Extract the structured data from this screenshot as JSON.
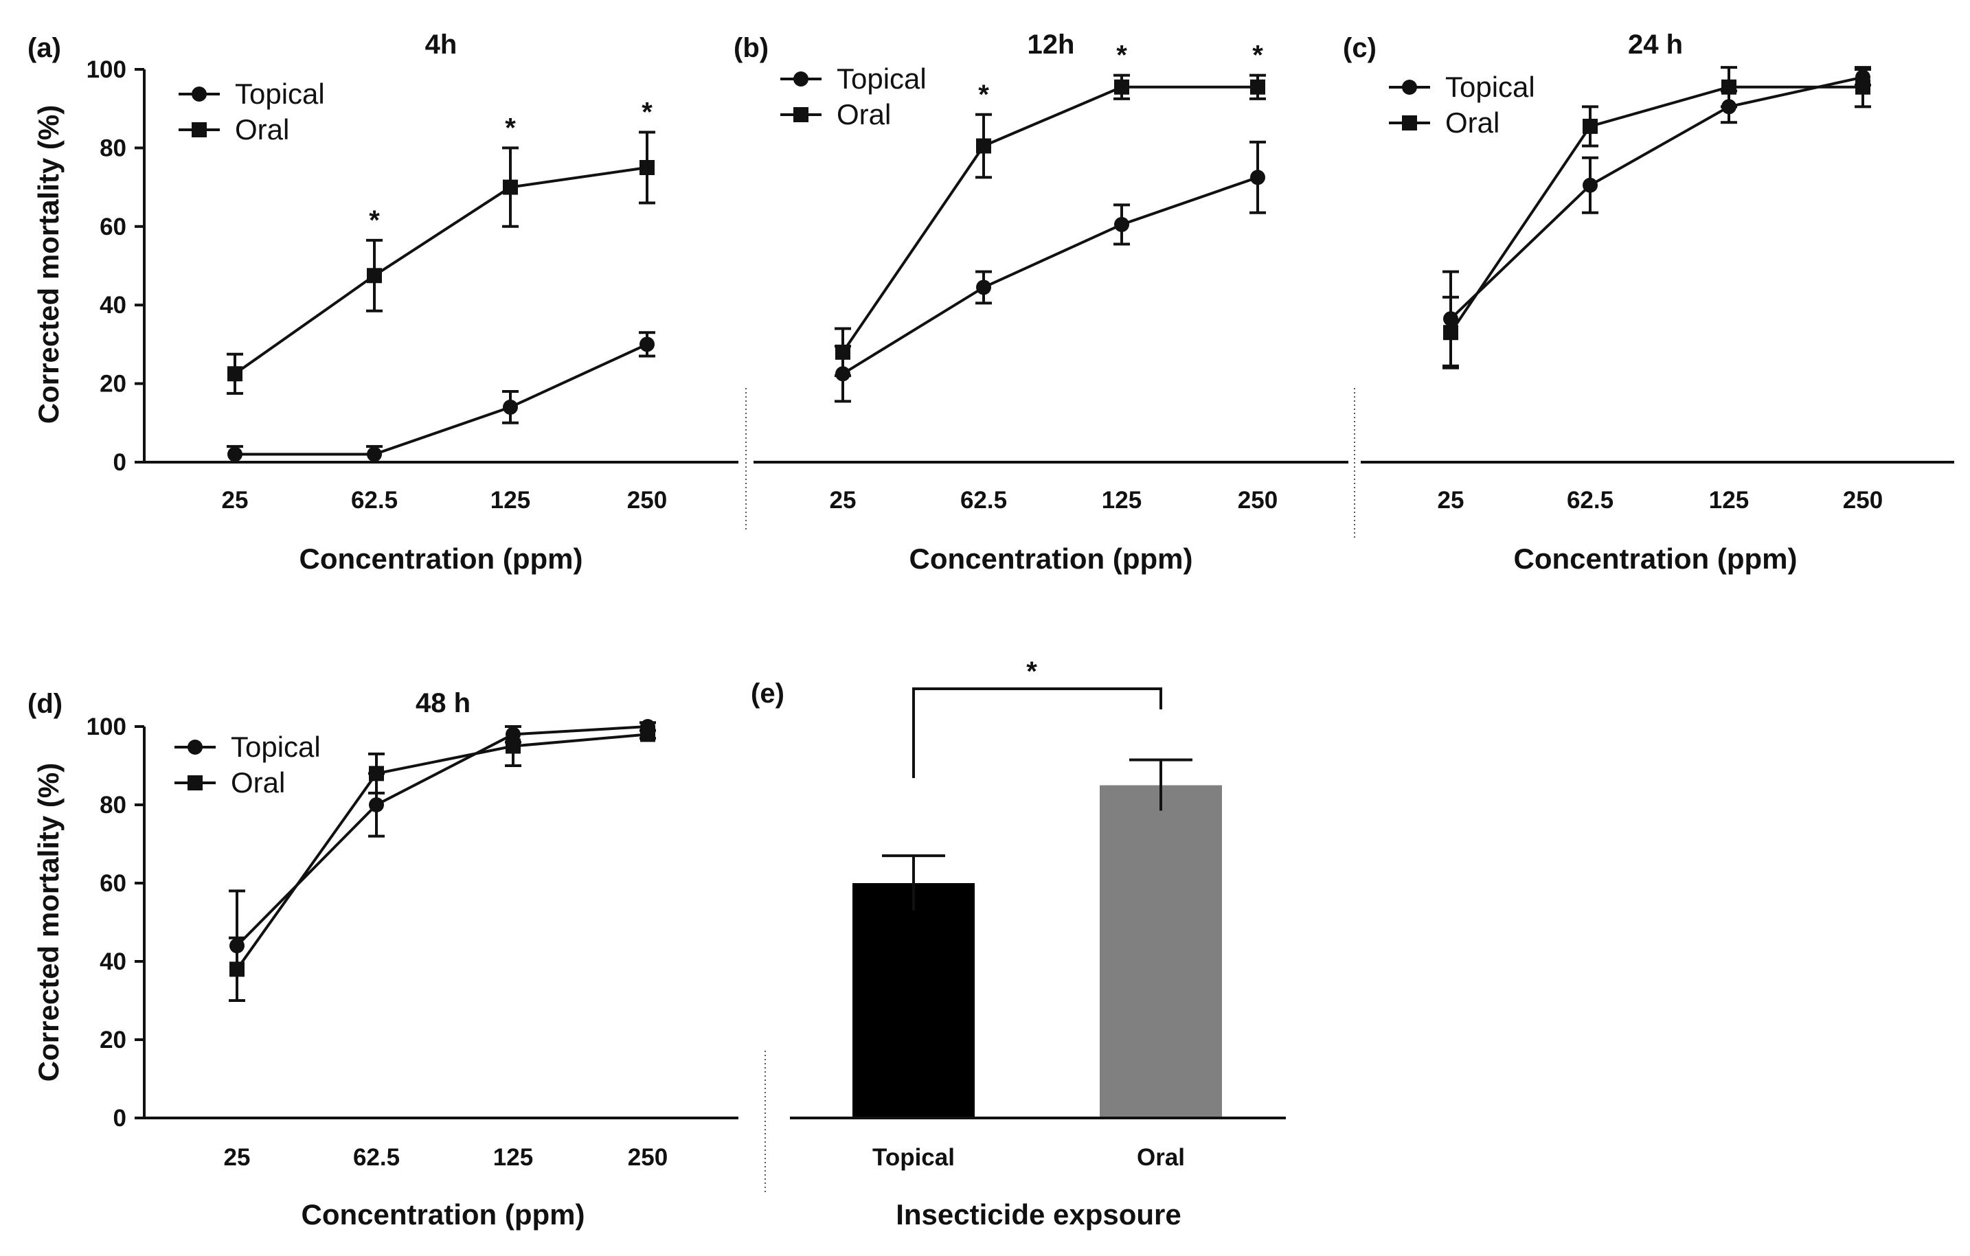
{
  "chart_data": [
    {
      "panel": "(a)",
      "title": "4h",
      "type": "line",
      "xlabel": "Concentration (ppm)",
      "ylabel": "Corrected mortality (%)",
      "categories": [
        "25",
        "62.5",
        "125",
        "250"
      ],
      "ylim": [
        0,
        100
      ],
      "yticks": [
        "0",
        "20",
        "40",
        "60",
        "80",
        "100"
      ],
      "series": [
        {
          "name": "Topical",
          "marker": "circle",
          "values": [
            2,
            2,
            14,
            30
          ],
          "errors": [
            2,
            2,
            4,
            3
          ]
        },
        {
          "name": "Oral",
          "marker": "square",
          "values": [
            22.5,
            47.5,
            70,
            75
          ],
          "errors": [
            5,
            9,
            10,
            9
          ]
        }
      ],
      "significance": [
        false,
        true,
        true,
        true
      ],
      "sig_symbol": "*"
    },
    {
      "panel": "(b)",
      "title": "12h",
      "type": "line",
      "xlabel": "Concentration (ppm)",
      "ylabel": "",
      "categories": [
        "25",
        "62.5",
        "125",
        "250"
      ],
      "ylim": [
        0,
        100
      ],
      "series": [
        {
          "name": "Topical",
          "marker": "circle",
          "values": [
            22.5,
            44.5,
            60.5,
            72.5
          ],
          "errors": [
            7,
            4,
            5,
            9
          ]
        },
        {
          "name": "Oral",
          "marker": "square",
          "values": [
            28,
            80.5,
            95.5,
            95.5
          ],
          "errors": [
            6,
            8,
            3,
            3
          ]
        }
      ],
      "significance": [
        false,
        true,
        true,
        true
      ],
      "sig_symbol": "*"
    },
    {
      "panel": "(c)",
      "title": "24 h",
      "type": "line",
      "xlabel": "Concentration (ppm)",
      "ylabel": "",
      "categories": [
        "25",
        "62.5",
        "125",
        "250"
      ],
      "ylim": [
        0,
        100
      ],
      "series": [
        {
          "name": "Topical",
          "marker": "circle",
          "values": [
            36.5,
            70.5,
            90.5,
            98
          ],
          "errors": [
            12,
            7,
            4,
            2
          ]
        },
        {
          "name": "Oral",
          "marker": "square",
          "values": [
            33,
            85.5,
            95.5,
            95.5
          ],
          "errors": [
            9,
            5,
            5,
            5
          ]
        }
      ],
      "significance": [
        false,
        false,
        false,
        false
      ],
      "sig_symbol": "*"
    },
    {
      "panel": "(d)",
      "title": "48 h",
      "type": "line",
      "xlabel": "Concentration (ppm)",
      "ylabel": "Corrected mortality (%)",
      "categories": [
        "25",
        "62.5",
        "125",
        "250"
      ],
      "ylim": [
        0,
        100
      ],
      "yticks": [
        "0",
        "20",
        "40",
        "60",
        "80",
        "100"
      ],
      "series": [
        {
          "name": "Topical",
          "marker": "circle",
          "values": [
            44,
            80,
            98,
            100
          ],
          "errors": [
            14,
            8,
            2,
            1
          ]
        },
        {
          "name": "Oral",
          "marker": "square",
          "values": [
            38,
            88,
            95,
            98
          ],
          "errors": [
            8,
            5,
            5,
            1
          ]
        }
      ],
      "significance": [
        false,
        false,
        false,
        false
      ],
      "sig_symbol": "*"
    },
    {
      "panel": "(e)",
      "title": "",
      "type": "bar",
      "xlabel": "Insecticide expsoure",
      "ylabel": "",
      "categories": [
        "Topical",
        "Oral"
      ],
      "ylim": [
        0,
        100
      ],
      "values": [
        60,
        85
      ],
      "errors": [
        7,
        6.5
      ],
      "colors": [
        "#000000",
        "#808080"
      ],
      "comparison": {
        "between": [
          "Topical",
          "Oral"
        ],
        "label": "*"
      }
    }
  ]
}
